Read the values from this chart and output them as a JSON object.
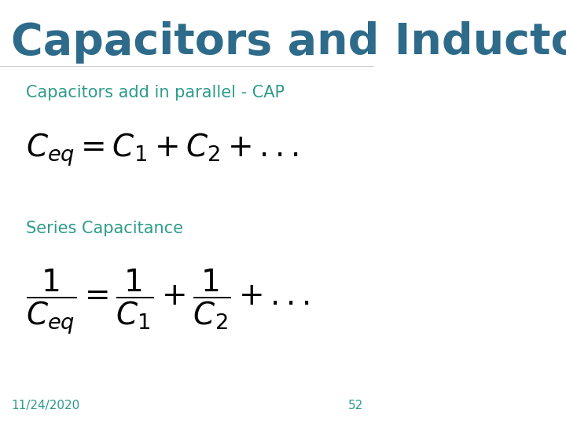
{
  "title": "Capacitors and Inductors",
  "title_color": "#2E6B8A",
  "title_fontsize": 40,
  "title_bold": true,
  "subtitle1": "Capacitors add in parallel - CAP",
  "subtitle1_color": "#2E9B8A",
  "subtitle1_fontsize": 15,
  "subtitle2": "Series Capacitance",
  "subtitle2_color": "#2E9B8A",
  "subtitle2_fontsize": 15,
  "formula1": "$C_{eq} = C_1 + C_2 + ...$",
  "formula1_color": "#000000",
  "formula1_fontsize": 28,
  "formula2": "$\\dfrac{1}{C_{eq}} = \\dfrac{1}{C_1} + \\dfrac{1}{C_2} + ...$",
  "formula2_color": "#000000",
  "formula2_fontsize": 28,
  "footer_date": "11/24/2020",
  "footer_page": "52",
  "footer_color": "#2E9B8A",
  "footer_fontsize": 11,
  "background_color": "#ffffff"
}
